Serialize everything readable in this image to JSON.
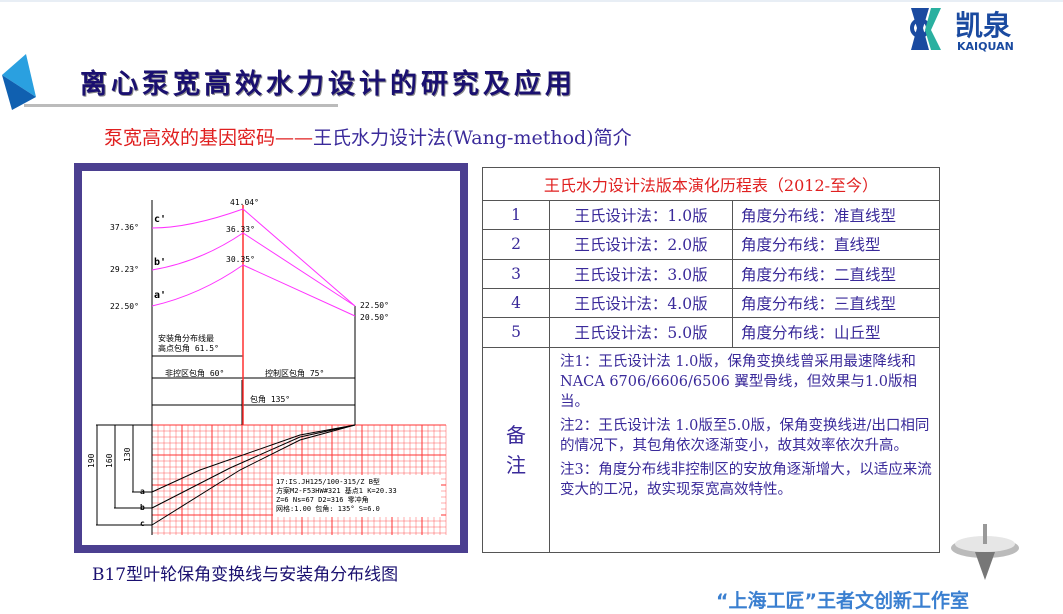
{
  "slide": {
    "title": "离心泵宽高效水力设计的研究及应用",
    "subtitle_red": "泵宽高效的基因密码——",
    "subtitle_blue": "王氏水力设计法(Wang-method)简介",
    "caption": "B17型叶轮保角变换线与安装角分布线图",
    "footer": "“上海工匠”王者文创新工作室",
    "logo": {
      "cn": "凯泉",
      "en": "KAIQUAN"
    },
    "colors": {
      "title": "#1a1070",
      "red": "#e02020",
      "blue": "#3a2a9a",
      "frame": "#4b3f90",
      "curve": "#ff33ff",
      "grid": "#ff3333"
    }
  },
  "diagram": {
    "peak_labels": [
      "41.04°",
      "36.33°",
      "30.35°"
    ],
    "left_labels": [
      "37.36°",
      "29.23°",
      "22.50°"
    ],
    "right_labels": [
      "22.50°",
      "20.50°"
    ],
    "curve_labels": [
      "c'",
      "b'",
      "a'"
    ],
    "note_max": [
      "安装角分布线最",
      "高点包角 61.5°"
    ],
    "non_control": "非控区包角 60°",
    "control": "控制区包角 75°",
    "wrap": "包角 135°",
    "dims": [
      "190",
      "160",
      "130"
    ],
    "bottom_labels": [
      "a",
      "b",
      "c"
    ],
    "info": [
      "17:IS.JH125/100-315/Z  B型",
      "方案M2-F53HW#321 基点1 K=20.33",
      "Z=6    Ns=67   D2=316   零冲角",
      "网格:1.00   包角: 135°   S=6.0"
    ]
  },
  "table": {
    "title": "王氏水力设计法版本演化历程表（2012-至今）",
    "rows": [
      {
        "no": "1",
        "version": "王氏设计法：1.0版",
        "line": "角度分布线：准直线型"
      },
      {
        "no": "2",
        "version": "王氏设计法：2.0版",
        "line": "角度分布线：直线型"
      },
      {
        "no": "3",
        "version": "王氏设计法：3.0版",
        "line": "角度分布线：二直线型"
      },
      {
        "no": "4",
        "version": "王氏设计法：4.0版",
        "line": "角度分布线：三直线型"
      },
      {
        "no": "5",
        "version": "王氏设计法：5.0版",
        "line": "角度分布线：山丘型"
      }
    ],
    "notes_label": "备注",
    "notes": [
      "注1：王氏设计法 1.0版，保角变换线曾采用最速降线和 NACA 6706/6606/6506 翼型骨线，但效果与1.0版相当。",
      "注2：王氏设计法 1.0版至5.0版，保角变换线进/出口相同的情况下，其包角依次逐渐变小，故其效率依次升高。",
      "注3：角度分布线非控制区的安放角逐渐增大，以适应来流变大的工况，故实现泵宽高效特性。"
    ]
  }
}
